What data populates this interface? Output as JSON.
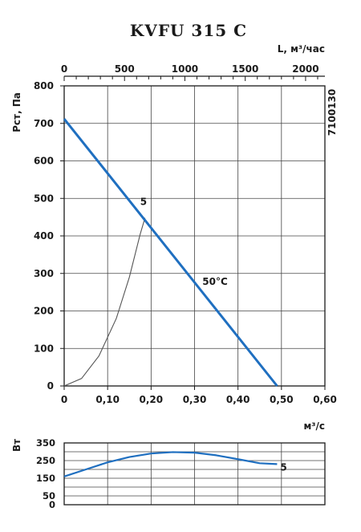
{
  "title": "KVFU 315 C",
  "code": "7100130",
  "chart_data": [
    {
      "type": "line",
      "name": "pressure-flow",
      "ylabel": "Pст, Па",
      "xlabel_bottom": "м³/с",
      "xlabel_top": "L, м³/час",
      "ylim": [
        0,
        800
      ],
      "xlim": [
        0,
        0.6
      ],
      "xlim_top": [
        0,
        2160
      ],
      "yticks": [
        0,
        100,
        200,
        300,
        400,
        500,
        600,
        700,
        800
      ],
      "xticks": [
        "0",
        "0,10",
        "0,20",
        "0,30",
        "0,40",
        "0,50",
        "0,60"
      ],
      "xticks_top": [
        "0",
        "500",
        "1000",
        "1500",
        "2000"
      ],
      "xticks_top_values": [
        0,
        500,
        1000,
        1500,
        2000
      ],
      "grid": true,
      "series": [
        {
          "name": "50°C",
          "color": "#1f6fc0",
          "points": [
            [
              0,
              712
            ],
            [
              0.49,
              0
            ]
          ]
        },
        {
          "name": "5",
          "color": "#555555",
          "points": [
            [
              0,
              0
            ],
            [
              0.04,
              20
            ],
            [
              0.08,
              80
            ],
            [
              0.12,
              180
            ],
            [
              0.15,
              290
            ],
            [
              0.175,
              405
            ],
            [
              0.186,
              448
            ]
          ]
        }
      ]
    },
    {
      "type": "line",
      "name": "power",
      "ylabel": "Вт",
      "ylim": [
        0,
        350
      ],
      "xlim": [
        0,
        0.6
      ],
      "yticks": [
        0,
        50,
        150,
        250,
        350
      ],
      "ytick_labels": [
        "0",
        "50",
        "150",
        "250",
        "350"
      ],
      "grid": true,
      "series": [
        {
          "name": "5",
          "color": "#1f6fc0",
          "points": [
            [
              0,
              160
            ],
            [
              0.05,
              200
            ],
            [
              0.1,
              240
            ],
            [
              0.15,
              270
            ],
            [
              0.2,
              290
            ],
            [
              0.25,
              298
            ],
            [
              0.3,
              295
            ],
            [
              0.35,
              280
            ],
            [
              0.4,
              258
            ],
            [
              0.45,
              235
            ],
            [
              0.49,
              230
            ]
          ]
        }
      ]
    }
  ]
}
